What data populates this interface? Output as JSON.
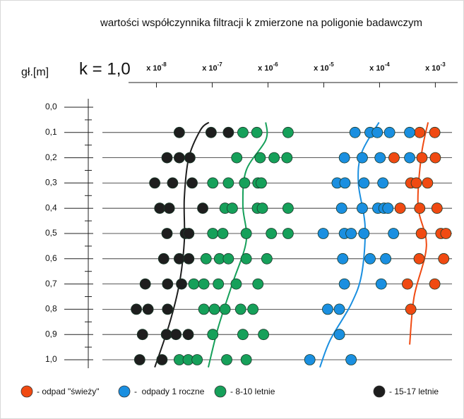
{
  "chart_data": {
    "type": "scatter",
    "title": "wartości współczynnika filtracji k zmierzone na poligonie badawczym",
    "ylabel": "gł.[m]",
    "xlabel": "k = 1,0",
    "xtick_base": "x 10",
    "xlim": [
      -8.5,
      -2.6
    ],
    "xticks": [
      -8,
      -7,
      -6,
      -5,
      -4,
      -3
    ],
    "ylim": [
      0,
      1
    ],
    "y_inverted": true,
    "yticks": [
      {
        "value": 0,
        "label": "0,0"
      },
      {
        "value": 0.1,
        "label": "0,1"
      },
      {
        "value": 0.2,
        "label": "0,2"
      },
      {
        "value": 0.3,
        "label": "0,3"
      },
      {
        "value": 0.4,
        "label": "0,4"
      },
      {
        "value": 0.5,
        "label": "0,5"
      },
      {
        "value": 0.6,
        "label": "0,6"
      },
      {
        "value": 0.7,
        "label": "0,7"
      },
      {
        "value": 0.8,
        "label": "0,8"
      },
      {
        "value": 0.9,
        "label": "0,9"
      },
      {
        "value": 1,
        "label": "1,0"
      }
    ],
    "grid": true,
    "series": [
      {
        "name": "- odpad \"świeży\"",
        "color": "#f04a12",
        "x": [
          -3.28,
          -3.01,
          -3.74,
          -3.24,
          -3.0,
          -3.44,
          -3.34,
          -3.14,
          -3.63,
          -3.28,
          -2.97,
          -3.25,
          -2.9,
          -2.81,
          -3.29,
          -2.85,
          -3.5,
          -3.01,
          -3.44
        ],
        "y": [
          0.1,
          0.1,
          0.2,
          0.2,
          0.2,
          0.3,
          0.3,
          0.3,
          0.4,
          0.4,
          0.4,
          0.5,
          0.5,
          0.5,
          0.6,
          0.6,
          0.7,
          0.7,
          0.8
        ],
        "curve_x": [
          -3.13,
          -3.25,
          -3.31,
          -3.16,
          -3.38,
          -3.46
        ],
        "curve_y": [
          0.06,
          0.19,
          0.39,
          0.55,
          0.75,
          0.94
        ]
      },
      {
        "name": "-  odpady 1 roczne",
        "color": "#1a8fe0",
        "x": [
          -4.44,
          -4.17,
          -4.04,
          -3.82,
          -3.46,
          -4.63,
          -4.31,
          -3.99,
          -3.46,
          -4.76,
          -4.62,
          -4.28,
          -3.94,
          -4.68,
          -4.31,
          -4.03,
          -3.92,
          -3.85,
          -5.01,
          -4.63,
          -4.51,
          -4.28,
          -3.75,
          -4.66,
          -4.17,
          -3.89,
          -4.63,
          -3.97,
          -4.93,
          -4.72,
          -4.72,
          -5.25,
          -4.51
        ],
        "y": [
          0.1,
          0.1,
          0.1,
          0.1,
          0.1,
          0.2,
          0.2,
          0.2,
          0.2,
          0.3,
          0.3,
          0.3,
          0.3,
          0.4,
          0.4,
          0.4,
          0.4,
          0.4,
          0.5,
          0.5,
          0.5,
          0.5,
          0.5,
          0.6,
          0.6,
          0.6,
          0.7,
          0.7,
          0.8,
          0.8,
          0.9,
          1,
          1
        ],
        "curve_x": [
          -4.01,
          -4.32,
          -4.38,
          -4.26,
          -4.32,
          -4.51,
          -4.88,
          -5.07
        ],
        "curve_y": [
          0.06,
          0.18,
          0.3,
          0.47,
          0.66,
          0.78,
          0.92,
          1.03
        ]
      },
      {
        "name": "- 8-10 letnie",
        "color": "#16a05a",
        "x": [
          -6.45,
          -6.2,
          -5.64,
          -6.56,
          -6.14,
          -5.89,
          -5.66,
          -6.99,
          -6.71,
          -6.42,
          -6.18,
          -6.12,
          -6.77,
          -6.64,
          -6.19,
          -6.1,
          -5.64,
          -6.99,
          -6.81,
          -6.39,
          -5.94,
          -5.64,
          -7.11,
          -6.87,
          -6.71,
          -6.39,
          -6.02,
          -7.33,
          -7.15,
          -6.89,
          -6.57,
          -6.18,
          -7.15,
          -6.96,
          -6.77,
          -6.49,
          -6.27,
          -6.99,
          -6.45,
          -6.08,
          -7.59,
          -7.43,
          -7.27,
          -6.74,
          -6.39
        ],
        "y": [
          0.1,
          0.1,
          0.1,
          0.2,
          0.2,
          0.2,
          0.2,
          0.3,
          0.3,
          0.3,
          0.3,
          0.3,
          0.4,
          0.4,
          0.4,
          0.4,
          0.4,
          0.5,
          0.5,
          0.5,
          0.5,
          0.5,
          0.6,
          0.6,
          0.6,
          0.6,
          0.6,
          0.7,
          0.7,
          0.7,
          0.7,
          0.7,
          0.8,
          0.8,
          0.8,
          0.8,
          0.8,
          0.9,
          0.9,
          0.9,
          1,
          1,
          1,
          1,
          1
        ],
        "curve_x": [
          -6.04,
          -6.04,
          -6.39,
          -6.45,
          -6.39,
          -6.64,
          -6.89,
          -7.07
        ],
        "curve_y": [
          0.06,
          0.13,
          0.25,
          0.39,
          0.53,
          0.7,
          0.87,
          1.03
        ]
      },
      {
        "name": "- 15-17 letnie",
        "color": "#1e1e1e",
        "x": [
          -7.59,
          -7.02,
          -6.71,
          -7.81,
          -7.59,
          -7.4,
          -8.03,
          -7.71,
          -7.36,
          -7.94,
          -7.77,
          -7.17,
          -7.81,
          -7.48,
          -7.42,
          -7.87,
          -7.59,
          -7.42,
          -8.2,
          -7.8,
          -7.55,
          -8.36,
          -8.15,
          -7.8,
          -8.25,
          -7.82,
          -7.65,
          -7.43,
          -8.3,
          -7.9
        ],
        "y": [
          0.1,
          0.1,
          0.1,
          0.2,
          0.2,
          0.2,
          0.3,
          0.3,
          0.3,
          0.4,
          0.4,
          0.4,
          0.5,
          0.5,
          0.5,
          0.6,
          0.6,
          0.6,
          0.7,
          0.7,
          0.7,
          0.8,
          0.8,
          0.8,
          0.9,
          0.9,
          0.9,
          0.9,
          1,
          1
        ],
        "curve_x": [
          -7.06,
          -7.21,
          -7.42,
          -7.5,
          -7.5,
          -7.59,
          -7.77,
          -8.03
        ],
        "curve_y": [
          0.06,
          0.09,
          0.2,
          0.36,
          0.53,
          0.7,
          0.86,
          1.03
        ]
      }
    ]
  }
}
